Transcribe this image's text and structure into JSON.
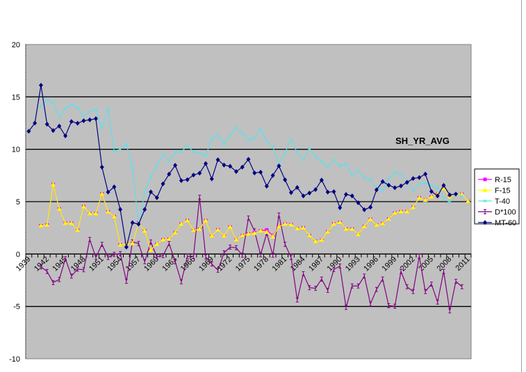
{
  "chart_data": {
    "type": "line",
    "title": "SH_YR_AVG",
    "xlabel": "",
    "ylabel": "",
    "ylim": [
      -10,
      20
    ],
    "yticks": [
      -10,
      -5,
      0,
      5,
      10,
      15,
      20
    ],
    "grid": true,
    "legend_position": "right",
    "categories_start": 1939,
    "categories_end": 2011,
    "tick_label_years": [
      1939,
      1942,
      1945,
      1948,
      1951,
      1954,
      1957,
      1960,
      1963,
      1966,
      1969,
      1972,
      1975,
      1978,
      1981,
      1984,
      1987,
      1990,
      1993,
      1996,
      1999,
      2002,
      2005,
      2008,
      2011
    ],
    "series": [
      {
        "name": "R-15",
        "color": "#FF00FF",
        "marker": "square",
        "start": 1941,
        "values": [
          2.7,
          2.77,
          6.64,
          4.31,
          2.94,
          2.94,
          2.28,
          4.53,
          3.87,
          3.87,
          5.75,
          4.03,
          3.58,
          0.88,
          1.0,
          1.0,
          2.99,
          2.21,
          0.38,
          0.95,
          1.37,
          1.44,
          2.04,
          2.87,
          3.2,
          2.26,
          2.39,
          3.2,
          1.73,
          2.32,
          1.73,
          2.59,
          1.37,
          1.77,
          1.92,
          2.05,
          2.21,
          2.3,
          1.75,
          2.61,
          2.87,
          2.81,
          2.43,
          2.5,
          1.77,
          1.22,
          1.33,
          2.14,
          2.87,
          3.03,
          2.39,
          2.39,
          1.88,
          2.65,
          3.32,
          2.77,
          2.92,
          3.36,
          3.93,
          4.05,
          4.05,
          4.47,
          5.37,
          5.15,
          5.46,
          5.71,
          6.26,
          5.46,
          5.69,
          5.71,
          5.04
        ]
      },
      {
        "name": "F-15",
        "color": "#FFFF00",
        "marker": "triangle",
        "start": 1941,
        "values": [
          2.7,
          2.77,
          6.64,
          4.31,
          2.94,
          2.94,
          2.28,
          4.53,
          3.87,
          3.87,
          5.75,
          4.03,
          3.58,
          0.88,
          1.0,
          1.0,
          2.99,
          2.21,
          0.38,
          0.95,
          1.37,
          1.44,
          2.04,
          2.87,
          3.2,
          2.26,
          2.39,
          3.2,
          1.73,
          2.32,
          1.73,
          2.59,
          1.37,
          1.77,
          1.92,
          1.99,
          2.21,
          2.1,
          1.66,
          2.61,
          2.87,
          2.81,
          2.43,
          2.5,
          1.77,
          1.22,
          1.33,
          2.14,
          2.87,
          3.03,
          2.39,
          2.39,
          1.88,
          2.65,
          3.32,
          2.77,
          2.92,
          3.36,
          3.93,
          4.05,
          4.05,
          4.47,
          5.37,
          5.15,
          5.46,
          5.71,
          6.26,
          5.46,
          5.69,
          5.71,
          5.04
        ]
      },
      {
        "name": "T-40",
        "color": "#5FE0E8",
        "marker": "x",
        "start": 1941,
        "values": [
          14.05,
          14.75,
          14.44,
          13.05,
          13.87,
          14.26,
          13.98,
          13.16,
          13.6,
          13.78,
          12.06,
          13.87,
          9.8,
          10.02,
          10.46,
          8.25,
          2.77,
          5.86,
          7.41,
          8.4,
          9.51,
          8.85,
          9.73,
          9.77,
          10.33,
          9.77,
          9.66,
          9.4,
          10.99,
          11.35,
          10.46,
          11.35,
          12.1,
          11.5,
          10.9,
          11.06,
          11.9,
          10.84,
          10.24,
          8.63,
          9.67,
          10.95,
          9.67,
          9.0,
          10.07,
          9.24,
          8.85,
          8.29,
          9.0,
          8.41,
          8.6,
          7.52,
          7.96,
          7.3,
          7.12,
          6.3,
          6.08,
          7.19,
          7.81,
          7.52,
          6.85,
          6.08,
          6.7,
          6.75,
          6.57,
          6.3,
          5.31,
          4.93,
          5.75,
          5.53
        ]
      },
      {
        "name": "D*100",
        "color": "#800080",
        "marker": "bar",
        "start": 1941,
        "values": [
          -1.22,
          -1.66,
          -2.72,
          -2.43,
          -0.44,
          -2.1,
          -1.44,
          -1.5,
          1.39,
          -0.33,
          0.93,
          -0.33,
          -0.04,
          0.04,
          -2.61,
          1.17,
          1.0,
          -0.73,
          1.15,
          -0.27,
          -0.15,
          1.0,
          -0.73,
          -2.65,
          -0.22,
          -0.22,
          5.42,
          -0.27,
          -0.95,
          -1.55,
          0.11,
          0.66,
          0.6,
          -0.11,
          3.43,
          2.21,
          -0.07,
          1.99,
          -0.11,
          3.72,
          0.93,
          -0.33,
          -4.38,
          -1.88,
          -3.21,
          -3.27,
          -2.39,
          -3.47,
          -1.48,
          -1.15,
          -5.09,
          -3.05,
          -3.05,
          -2.1,
          -4.76,
          -3.38,
          -2.39,
          -4.93,
          -4.98,
          -1.66,
          -3.12,
          -3.58,
          -0.22,
          -3.58,
          -2.87,
          -4.58,
          -1.66,
          -5.42,
          -2.61,
          -3.12
        ]
      },
      {
        "name": "MT-60",
        "color": "#000080",
        "marker": "diamond",
        "start": 1939,
        "values": [
          11.72,
          12.5,
          16.11,
          12.39,
          11.79,
          12.21,
          11.28,
          12.65,
          12.48,
          12.72,
          12.81,
          12.92,
          8.29,
          5.91,
          6.41,
          4.25,
          0.66,
          2.99,
          2.85,
          4.25,
          5.93,
          5.37,
          6.7,
          7.63,
          8.47,
          7.01,
          7.1,
          7.54,
          7.72,
          8.63,
          7.17,
          9.0,
          8.49,
          8.38,
          7.87,
          8.29,
          9.04,
          7.74,
          7.81,
          6.48,
          7.5,
          8.41,
          7.08,
          5.86,
          6.35,
          5.55,
          5.82,
          6.15,
          7.06,
          5.91,
          5.95,
          4.42,
          5.69,
          5.55,
          4.89,
          4.23,
          4.47,
          6.13,
          6.92,
          6.57,
          6.33,
          6.5,
          6.84,
          7.21,
          7.3,
          7.63,
          5.97,
          5.55,
          6.55,
          5.64,
          5.72
        ]
      }
    ]
  }
}
